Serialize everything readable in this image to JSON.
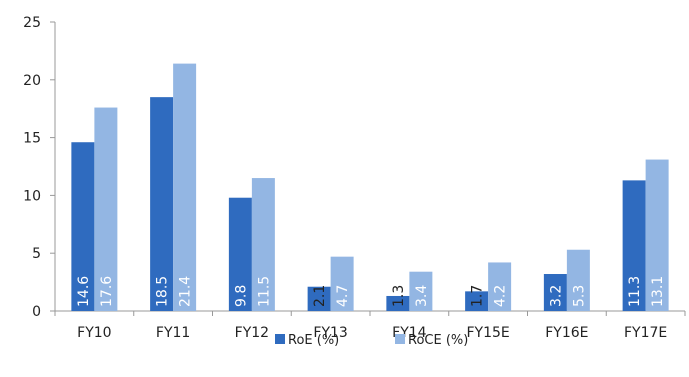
{
  "chart_data": {
    "type": "bar",
    "categories": [
      "FY10",
      "FY11",
      "FY12",
      "FY13",
      "FY14",
      "FY15E",
      "FY16E",
      "FY17E"
    ],
    "series": [
      {
        "name": "RoE (%)",
        "color": "#2f6bbf",
        "values": [
          14.6,
          18.5,
          9.8,
          2.1,
          1.3,
          1.7,
          3.2,
          11.3
        ]
      },
      {
        "name": "RoCE (%)",
        "color": "#93b6e3",
        "values": [
          17.6,
          21.4,
          11.5,
          4.7,
          3.4,
          4.2,
          5.3,
          13.1
        ]
      }
    ],
    "ylim": [
      0,
      25
    ],
    "yticks": [
      0,
      5,
      10,
      15,
      20,
      25
    ],
    "legend_position": "bottom",
    "grid": false,
    "data_labels": "rotated, inside bar base"
  }
}
